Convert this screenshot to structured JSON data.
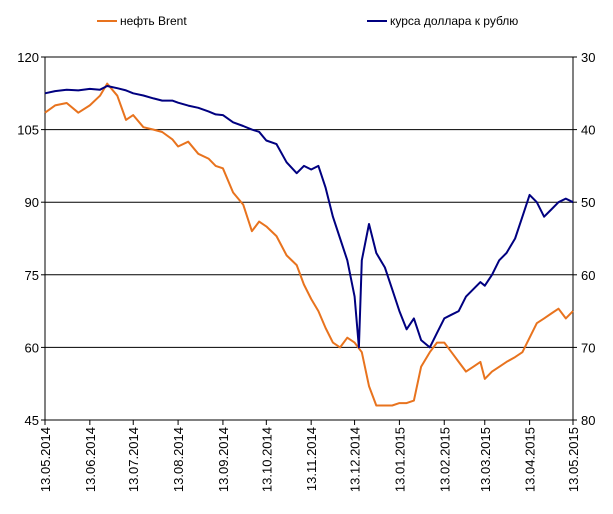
{
  "chart_data": {
    "type": "line",
    "legend_placement": "top",
    "grid": "horizontal",
    "x_ticks": [
      "13.05.2014",
      "13.06.2014",
      "13.07.2014",
      "13.08.2014",
      "13.09.2014",
      "13.10.2014",
      "13.11.2014",
      "13.12.2014",
      "13.01.2015",
      "13.02.2015",
      "13.03.2015",
      "13.04.2015",
      "13.05.2015"
    ],
    "x_range": [
      "13.05.2014",
      "13.05.2015"
    ],
    "y_left": {
      "ticks": [
        45,
        60,
        75,
        90,
        105,
        120
      ],
      "range": [
        45,
        120
      ]
    },
    "y_right": {
      "ticks": [
        30,
        40,
        50,
        60,
        70,
        80
      ],
      "range": [
        30,
        80
      ],
      "inverted": true
    },
    "series": [
      {
        "name": "нефть Brent",
        "axis": "left",
        "color": "#e8731e",
        "x": [
          "13.05.2014",
          "20.05.2014",
          "28.05.2014",
          "05.06.2014",
          "13.06.2014",
          "20.06.2014",
          "25.06.2014",
          "02.07.2014",
          "08.07.2014",
          "13.07.2014",
          "20.07.2014",
          "27.07.2014",
          "02.08.2014",
          "09.08.2014",
          "13.08.2014",
          "20.08.2014",
          "27.08.2014",
          "03.09.2014",
          "08.09.2014",
          "13.09.2014",
          "20.09.2014",
          "27.09.2014",
          "03.10.2014",
          "08.10.2014",
          "13.10.2014",
          "20.10.2014",
          "27.10.2014",
          "03.11.2014",
          "08.11.2014",
          "13.11.2014",
          "18.11.2014",
          "23.11.2014",
          "28.11.2014",
          "03.12.2014",
          "08.12.2014",
          "13.12.2014",
          "18.12.2014",
          "23.12.2014",
          "28.12.2014",
          "03.01.2015",
          "08.01.2015",
          "13.01.2015",
          "18.01.2015",
          "23.01.2015",
          "28.01.2015",
          "03.02.2015",
          "08.02.2015",
          "13.02.2015",
          "18.02.2015",
          "23.02.2015",
          "28.02.2015",
          "05.03.2015",
          "10.03.2015",
          "13.03.2015",
          "18.03.2015",
          "23.03.2015",
          "28.03.2015",
          "03.04.2015",
          "08.04.2015",
          "13.04.2015",
          "18.04.2015",
          "23.04.2015",
          "28.04.2015",
          "03.05.2015",
          "08.05.2015",
          "13.05.2015"
        ],
        "values": [
          108.5,
          110,
          110.5,
          108.5,
          110,
          112,
          114.5,
          112,
          107,
          108,
          105.5,
          105,
          104.5,
          103,
          101.5,
          102.5,
          100,
          99,
          97.5,
          97,
          92,
          89.5,
          84,
          86,
          85,
          83,
          79,
          77,
          73,
          70,
          67.5,
          64,
          61,
          60,
          62,
          61,
          59,
          52,
          48,
          48,
          48,
          48.5,
          48.5,
          49,
          56,
          59,
          61,
          61,
          59,
          57,
          55,
          56,
          57,
          53.5,
          55,
          56,
          57,
          58,
          59,
          62,
          65,
          66,
          67,
          68,
          66,
          67.5
        ]
      },
      {
        "name": "курса доллара к рублю",
        "axis": "right",
        "color": "#000080",
        "x": [
          "13.05.2014",
          "20.05.2014",
          "28.05.2014",
          "05.06.2014",
          "13.06.2014",
          "20.06.2014",
          "25.06.2014",
          "02.07.2014",
          "08.07.2014",
          "13.07.2014",
          "20.07.2014",
          "27.07.2014",
          "02.08.2014",
          "09.08.2014",
          "13.08.2014",
          "20.08.2014",
          "27.08.2014",
          "03.09.2014",
          "08.09.2014",
          "13.09.2014",
          "20.09.2014",
          "27.09.2014",
          "03.10.2014",
          "08.10.2014",
          "13.10.2014",
          "20.10.2014",
          "27.10.2014",
          "03.11.2014",
          "08.11.2014",
          "13.11.2014",
          "18.11.2014",
          "23.11.2014",
          "28.11.2014",
          "03.12.2014",
          "08.12.2014",
          "13.12.2014",
          "16.12.2014",
          "18.12.2014",
          "23.12.2014",
          "28.12.2014",
          "03.01.2015",
          "08.01.2015",
          "13.01.2015",
          "18.01.2015",
          "23.01.2015",
          "28.01.2015",
          "03.02.2015",
          "08.02.2015",
          "13.02.2015",
          "18.02.2015",
          "23.02.2015",
          "28.02.2015",
          "05.03.2015",
          "10.03.2015",
          "13.03.2015",
          "18.03.2015",
          "23.03.2015",
          "28.03.2015",
          "03.04.2015",
          "08.04.2015",
          "13.04.2015",
          "18.04.2015",
          "23.04.2015",
          "28.04.2015",
          "03.05.2015",
          "08.05.2015",
          "13.05.2015"
        ],
        "values": [
          35,
          34.7,
          34.5,
          34.6,
          34.4,
          34.5,
          34,
          34.3,
          34.6,
          35,
          35.3,
          35.7,
          36,
          36,
          36.3,
          36.7,
          37,
          37.5,
          37.9,
          38,
          39,
          39.5,
          40,
          40.3,
          41.5,
          42,
          44.5,
          46,
          45,
          45.5,
          45,
          48,
          52,
          55,
          58,
          63,
          70,
          58,
          53,
          57,
          59,
          62,
          65,
          67.5,
          66,
          69,
          70,
          68,
          66,
          65.5,
          65,
          63,
          62,
          61,
          61.5,
          60,
          58,
          57,
          55,
          52,
          49,
          50,
          52,
          51,
          50,
          49.5,
          50
        ]
      }
    ]
  }
}
